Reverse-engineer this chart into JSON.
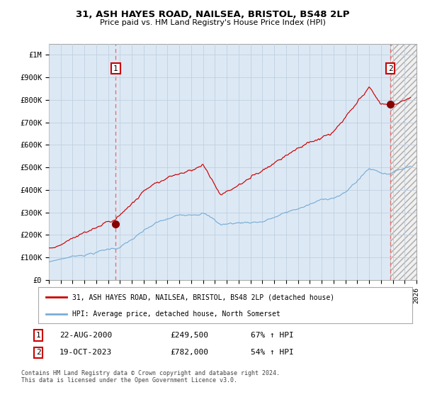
{
  "title": "31, ASH HAYES ROAD, NAILSEA, BRISTOL, BS48 2LP",
  "subtitle": "Price paid vs. HM Land Registry's House Price Index (HPI)",
  "xlim": [
    1995.0,
    2026.0
  ],
  "ylim": [
    0,
    1050000
  ],
  "yticks": [
    0,
    100000,
    200000,
    300000,
    400000,
    500000,
    600000,
    700000,
    800000,
    900000,
    1000000
  ],
  "ytick_labels": [
    "£0",
    "£100K",
    "£200K",
    "£300K",
    "£400K",
    "£500K",
    "£600K",
    "£700K",
    "£800K",
    "£900K",
    "£1M"
  ],
  "xticks": [
    1995,
    1996,
    1997,
    1998,
    1999,
    2000,
    2001,
    2002,
    2003,
    2004,
    2005,
    2006,
    2007,
    2008,
    2009,
    2010,
    2011,
    2012,
    2013,
    2014,
    2015,
    2016,
    2017,
    2018,
    2019,
    2020,
    2021,
    2022,
    2023,
    2024,
    2025,
    2026
  ],
  "transaction1_x": 2000.64,
  "transaction1_y": 249500,
  "transaction1_date": "22-AUG-2000",
  "transaction1_price": "£249,500",
  "transaction1_hpi": "67% ↑ HPI",
  "transaction2_x": 2023.8,
  "transaction2_y": 782000,
  "transaction2_date": "19-OCT-2023",
  "transaction2_price": "£782,000",
  "transaction2_hpi": "54% ↑ HPI",
  "hpi_line_color": "#7aaed6",
  "price_line_color": "#cc0000",
  "transaction_marker_color": "#880000",
  "vline_color": "#e87070",
  "plot_bg_color": "#dce9f5",
  "legend_label_price": "31, ASH HAYES ROAD, NAILSEA, BRISTOL, BS48 2LP (detached house)",
  "legend_label_hpi": "HPI: Average price, detached house, North Somerset",
  "footer_text": "Contains HM Land Registry data © Crown copyright and database right 2024.\nThis data is licensed under the Open Government Licence v3.0."
}
